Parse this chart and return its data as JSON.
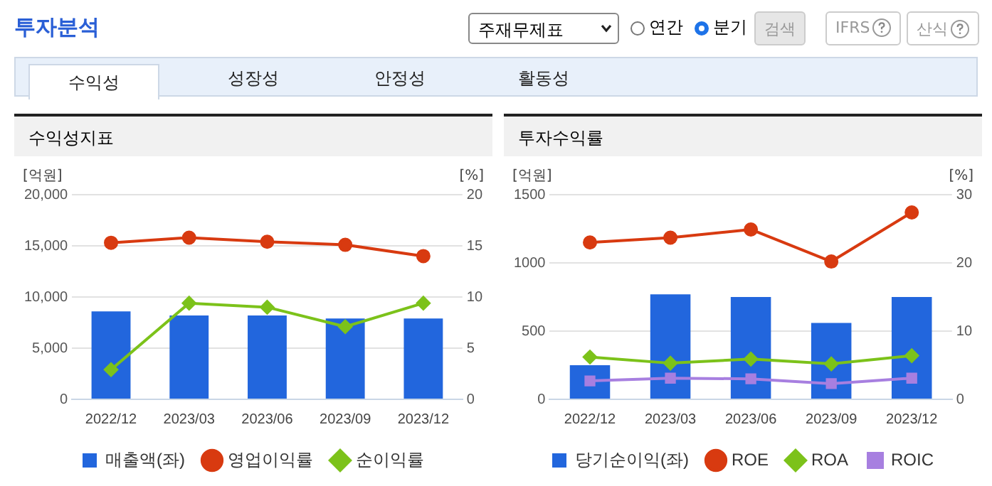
{
  "chart_data": [
    {
      "type": "other",
      "title": "투자분석",
      "annotations": [
        "주재무제표",
        "연간",
        "분기",
        "검색",
        "IFRS",
        "산식",
        "수익성",
        "성장성",
        "안정성",
        "활동성"
      ]
    },
    {
      "type": "bar",
      "title": "수익성지표",
      "ylabel": "[억원]",
      "y2label": "[%]",
      "categories": [
        "2022/12",
        "2023/03",
        "2023/06",
        "2023/09",
        "2023/12"
      ],
      "series": [
        {
          "name": "매출액(좌)",
          "type": "bar",
          "color": "#2266dd",
          "values": [
            8600,
            8200,
            8200,
            7900,
            7900
          ]
        },
        {
          "name": "영업이익률",
          "type": "line",
          "axis": "y2",
          "marker": "circle",
          "color": "#d83a10",
          "values": [
            15.3,
            15.8,
            15.4,
            15.1,
            14.0
          ]
        },
        {
          "name": "순이익률",
          "type": "line",
          "axis": "y2",
          "marker": "diamond",
          "color": "#7cc21a",
          "values": [
            2.9,
            9.4,
            9.0,
            7.1,
            9.4
          ]
        }
      ],
      "ylim": [
        0,
        20000
      ],
      "yticks": [
        0,
        {
          "value": 5000,
          "label": "5,000"
        },
        {
          "value": 10000,
          "label": "10,000"
        },
        {
          "value": 15000,
          "label": "15,000"
        },
        {
          "value": 20000,
          "label": "20,000"
        }
      ],
      "y2lim": [
        0,
        20
      ],
      "y2ticks": [
        0,
        5,
        10,
        15,
        20
      ],
      "grid": "y",
      "legend": "bottom"
    },
    {
      "type": "bar",
      "title": "투자수익률",
      "ylabel": "[억원]",
      "y2label": "[%]",
      "categories": [
        "2022/12",
        "2023/03",
        "2023/06",
        "2023/09",
        "2023/12"
      ],
      "series": [
        {
          "name": "당기순이익(좌)",
          "type": "bar",
          "color": "#2266dd",
          "values": [
            250,
            770,
            750,
            560,
            750
          ]
        },
        {
          "name": "ROE",
          "type": "line",
          "axis": "y2",
          "marker": "circle",
          "color": "#d83a10",
          "values": [
            23.0,
            23.7,
            24.9,
            20.2,
            27.4
          ]
        },
        {
          "name": "ROA",
          "type": "line",
          "axis": "y2",
          "marker": "diamond",
          "color": "#7cc21a",
          "values": [
            6.2,
            5.3,
            5.9,
            5.2,
            6.4
          ]
        },
        {
          "name": "ROIC",
          "type": "line",
          "axis": "y2",
          "marker": "square",
          "color": "#a77fe0",
          "values": [
            2.7,
            3.1,
            3.0,
            2.3,
            3.1
          ]
        }
      ],
      "ylim": [
        0,
        1500
      ],
      "yticks": [
        0,
        500,
        1000,
        1500
      ],
      "y2lim": [
        0,
        30
      ],
      "y2ticks": [
        0,
        10,
        20,
        30
      ],
      "grid": "y",
      "legend": "bottom"
    }
  ]
}
